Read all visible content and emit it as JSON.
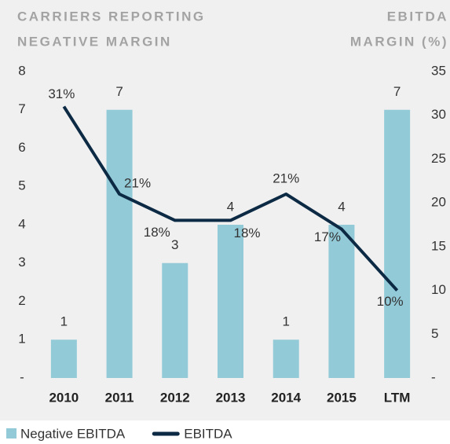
{
  "chart_data": {
    "type": "bar+line",
    "ylabel": [
      "CARRIERS REPORTING",
      "NEGATIVE MARGIN"
    ],
    "y2label": [
      "EBITDA",
      "MARGIN (%)"
    ],
    "categories": [
      "2010",
      "2011",
      "2012",
      "2013",
      "2014",
      "2015",
      "LTM"
    ],
    "series": [
      {
        "name": "Negative EBITDA",
        "type": "bar",
        "color": "#92cad8",
        "axis": "y",
        "values": [
          1,
          7,
          3,
          4,
          1,
          4,
          7
        ]
      },
      {
        "name": "EBITDA",
        "type": "line",
        "color": "#0d2a45",
        "axis": "y2",
        "values": [
          31,
          21,
          18,
          18,
          21,
          17,
          10
        ],
        "value_labels": [
          "31%",
          "21%",
          "18%",
          "18%",
          "21%",
          "17%",
          "10%"
        ]
      }
    ],
    "ylim": [
      0,
      8
    ],
    "yticks": [
      {
        "value": 0,
        "label": "-"
      },
      1,
      2,
      3,
      4,
      5,
      6,
      7,
      8
    ],
    "y2lim": [
      0,
      35
    ],
    "y2ticks": [
      {
        "value": 0,
        "label": "-"
      },
      5,
      10,
      15,
      20,
      25,
      30,
      35
    ],
    "legend": "bottom-left"
  }
}
